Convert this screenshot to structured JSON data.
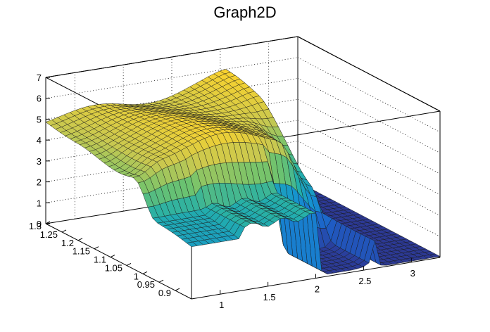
{
  "chart_data": {
    "type": "surface",
    "title": "Graph2D",
    "xlabel": "",
    "ylabel": "",
    "zlabel": "",
    "xlim": [
      0.7,
      3.3
    ],
    "ylim": [
      0.85,
      1.3
    ],
    "zlim": [
      0,
      7
    ],
    "x_ticks": [
      "1",
      "1.5",
      "2",
      "2.5",
      "3"
    ],
    "y_ticks": [
      "0.9",
      "0.95",
      "1",
      "1.05",
      "1.1",
      "1.15",
      "1.2",
      "1.25",
      "1.3"
    ],
    "z_ticks": [
      "0",
      "1",
      "2",
      "3",
      "4",
      "5",
      "6",
      "7"
    ],
    "x_tick_values": [
      1,
      1.5,
      2,
      2.5,
      3
    ],
    "y_tick_values": [
      0.9,
      0.95,
      1,
      1.05,
      1.1,
      1.15,
      1.2,
      1.25,
      1.3
    ],
    "z_tick_values": [
      0,
      1,
      2,
      3,
      4,
      5,
      6,
      7
    ],
    "grid": true,
    "colormap": "viridis-like (blue to yellow)",
    "surface_levels": [
      {
        "region": "plateau x<2.6, y>1.0",
        "z": 5.3
      },
      {
        "region": "step x 1.2-2.05, y<0.98",
        "z": 3.0
      },
      {
        "region": "floor x 2.2-3.3, y<1.05",
        "z": 0
      }
    ]
  }
}
